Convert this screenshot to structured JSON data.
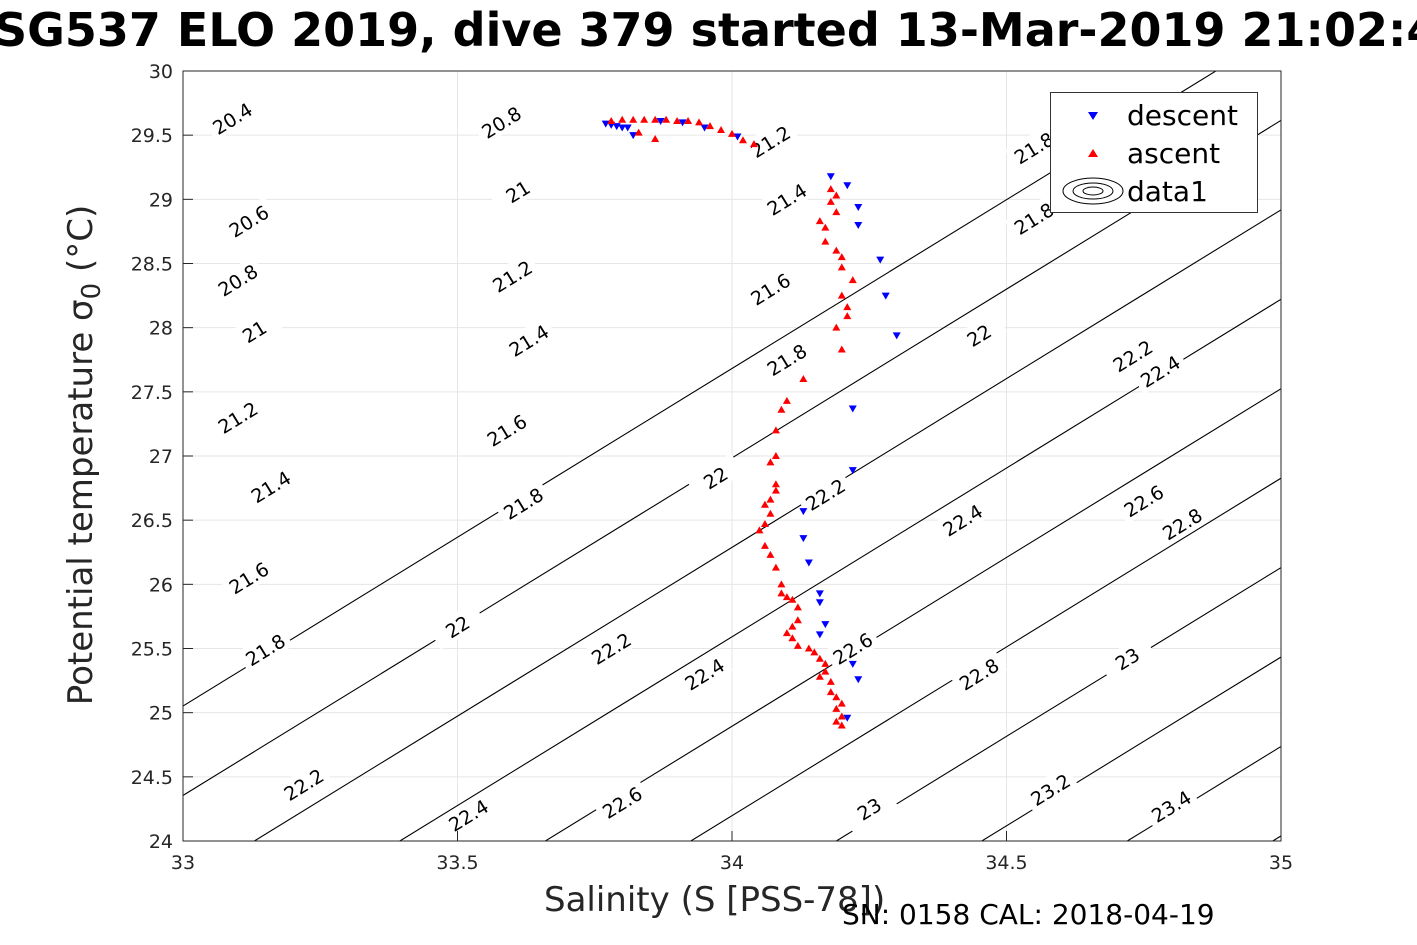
{
  "title": "SG537 ELO 2019, dive 379 started 13-Mar-2019 21:02:4",
  "footer": "SN: 0158  CAL: 2018-04-19",
  "chart_data": {
    "type": "scatter",
    "xlabel": "Salinity (S [PSS-78])",
    "ylabel_text": "Potential temperature σ",
    "ylabel_sub": "0",
    "ylabel_unit": " (°C)",
    "xlim": [
      33,
      35
    ],
    "ylim": [
      24,
      30
    ],
    "x_ticks": [
      "33",
      "33.5",
      "34",
      "34.5",
      "35"
    ],
    "y_ticks": [
      "24",
      "24.5",
      "25",
      "25.5",
      "26",
      "26.5",
      "27",
      "27.5",
      "28",
      "28.5",
      "29",
      "29.5",
      "30"
    ],
    "grid": true,
    "legend_placement": "top-right",
    "legend": [
      "descent",
      "ascent",
      "data1"
    ],
    "colors": {
      "descent": "#0000ff",
      "ascent": "#ff0000",
      "contour": "#000000",
      "grid": "#e6e6e6"
    },
    "contour_labels": [
      {
        "text": "20.4",
        "x": 33.09,
        "y": 29.63
      },
      {
        "text": "20.6",
        "x": 33.12,
        "y": 28.83
      },
      {
        "text": "20.8",
        "x": 33.1,
        "y": 28.37
      },
      {
        "text": "21",
        "x": 33.13,
        "y": 27.97
      },
      {
        "text": "21.2",
        "x": 33.1,
        "y": 27.3
      },
      {
        "text": "21.4",
        "x": 33.16,
        "y": 26.76
      },
      {
        "text": "21.6",
        "x": 33.12,
        "y": 26.05
      },
      {
        "text": "21.8",
        "x": 33.15,
        "y": 25.49
      },
      {
        "text": "22.2",
        "x": 33.22,
        "y": 24.44
      },
      {
        "text": "20.8",
        "x": 33.58,
        "y": 29.6
      },
      {
        "text": "21",
        "x": 33.61,
        "y": 29.06
      },
      {
        "text": "21.2",
        "x": 33.6,
        "y": 28.4
      },
      {
        "text": "21.4",
        "x": 33.63,
        "y": 27.9
      },
      {
        "text": "21.6",
        "x": 33.59,
        "y": 27.2
      },
      {
        "text": "21.8",
        "x": 33.62,
        "y": 26.63
      },
      {
        "text": "22",
        "x": 33.5,
        "y": 25.67
      },
      {
        "text": "22.2",
        "x": 33.78,
        "y": 25.5
      },
      {
        "text": "22.4",
        "x": 33.52,
        "y": 24.2
      },
      {
        "text": "21.2",
        "x": 34.07,
        "y": 29.45
      },
      {
        "text": "21.4",
        "x": 34.1,
        "y": 29.0
      },
      {
        "text": "21.6",
        "x": 34.07,
        "y": 28.3
      },
      {
        "text": "21.8",
        "x": 34.1,
        "y": 27.75
      },
      {
        "text": "22",
        "x": 33.97,
        "y": 26.83
      },
      {
        "text": "22.2",
        "x": 34.17,
        "y": 26.7
      },
      {
        "text": "22.4",
        "x": 33.95,
        "y": 25.3
      },
      {
        "text": "22.6",
        "x": 34.22,
        "y": 25.5
      },
      {
        "text": "22.6",
        "x": 33.8,
        "y": 24.3
      },
      {
        "text": "23",
        "x": 34.25,
        "y": 24.25
      },
      {
        "text": "21.8",
        "x": 34.55,
        "y": 29.4
      },
      {
        "text": "21.8",
        "x": 34.55,
        "y": 28.85
      },
      {
        "text": "22",
        "x": 34.45,
        "y": 27.94
      },
      {
        "text": "22.2",
        "x": 34.73,
        "y": 27.78
      },
      {
        "text": "22.4",
        "x": 34.78,
        "y": 27.66
      },
      {
        "text": "22.4",
        "x": 34.42,
        "y": 26.5
      },
      {
        "text": "22.6",
        "x": 34.75,
        "y": 26.65
      },
      {
        "text": "22.8",
        "x": 34.82,
        "y": 26.47
      },
      {
        "text": "22.8",
        "x": 34.45,
        "y": 25.3
      },
      {
        "text": "23",
        "x": 34.72,
        "y": 25.42
      },
      {
        "text": "23.2",
        "x": 34.58,
        "y": 24.4
      },
      {
        "text": "23.4",
        "x": 34.8,
        "y": 24.27
      }
    ],
    "contour_levels": [
      "20.4",
      "20.6",
      "20.8",
      "21",
      "21.2",
      "21.4",
      "21.6",
      "21.8",
      "22",
      "22.2",
      "22.4",
      "22.6",
      "22.8",
      "23",
      "23.2",
      "23.4"
    ],
    "series": [
      {
        "name": "descent",
        "marker": "triangle-down",
        "points": [
          [
            33.77,
            29.59
          ],
          [
            33.78,
            29.58
          ],
          [
            33.79,
            29.57
          ],
          [
            33.8,
            29.56
          ],
          [
            33.81,
            29.56
          ],
          [
            33.82,
            29.5
          ],
          [
            33.87,
            29.61
          ],
          [
            33.91,
            29.6
          ],
          [
            33.95,
            29.56
          ],
          [
            34.01,
            29.49
          ],
          [
            34.18,
            29.18
          ],
          [
            34.21,
            29.11
          ],
          [
            34.23,
            28.94
          ],
          [
            34.23,
            28.8
          ],
          [
            34.27,
            28.53
          ],
          [
            34.28,
            28.25
          ],
          [
            34.3,
            27.94
          ],
          [
            34.22,
            27.37
          ],
          [
            34.22,
            26.89
          ],
          [
            34.13,
            26.57
          ],
          [
            34.13,
            26.36
          ],
          [
            34.14,
            26.17
          ],
          [
            34.16,
            25.93
          ],
          [
            34.16,
            25.86
          ],
          [
            34.17,
            25.69
          ],
          [
            34.16,
            25.61
          ],
          [
            34.22,
            25.38
          ],
          [
            34.23,
            25.26
          ],
          [
            34.21,
            24.96
          ]
        ]
      },
      {
        "name": "ascent",
        "marker": "triangle-up",
        "points": [
          [
            33.78,
            29.61
          ],
          [
            33.8,
            29.62
          ],
          [
            33.82,
            29.62
          ],
          [
            33.84,
            29.62
          ],
          [
            33.86,
            29.62
          ],
          [
            33.88,
            29.62
          ],
          [
            33.9,
            29.61
          ],
          [
            33.92,
            29.61
          ],
          [
            33.94,
            29.6
          ],
          [
            33.96,
            29.57
          ],
          [
            33.98,
            29.54
          ],
          [
            34.0,
            29.51
          ],
          [
            34.02,
            29.46
          ],
          [
            34.04,
            29.43
          ],
          [
            33.83,
            29.52
          ],
          [
            33.86,
            29.47
          ],
          [
            34.18,
            29.08
          ],
          [
            34.19,
            29.03
          ],
          [
            34.18,
            28.98
          ],
          [
            34.19,
            28.9
          ],
          [
            34.16,
            28.83
          ],
          [
            34.17,
            28.78
          ],
          [
            34.17,
            28.67
          ],
          [
            34.19,
            28.6
          ],
          [
            34.2,
            28.55
          ],
          [
            34.2,
            28.47
          ],
          [
            34.22,
            28.37
          ],
          [
            34.2,
            28.25
          ],
          [
            34.21,
            28.16
          ],
          [
            34.21,
            28.09
          ],
          [
            34.19,
            28.0
          ],
          [
            34.2,
            27.83
          ],
          [
            34.13,
            27.6
          ],
          [
            34.1,
            27.43
          ],
          [
            34.09,
            27.36
          ],
          [
            34.08,
            27.2
          ],
          [
            34.08,
            27.0
          ],
          [
            34.07,
            26.95
          ],
          [
            34.08,
            26.78
          ],
          [
            34.08,
            26.73
          ],
          [
            34.07,
            26.66
          ],
          [
            34.06,
            26.62
          ],
          [
            34.07,
            26.55
          ],
          [
            34.06,
            26.47
          ],
          [
            34.05,
            26.42
          ],
          [
            34.06,
            26.3
          ],
          [
            34.07,
            26.23
          ],
          [
            34.08,
            26.13
          ],
          [
            34.09,
            26.0
          ],
          [
            34.09,
            25.93
          ],
          [
            34.1,
            25.9
          ],
          [
            34.11,
            25.88
          ],
          [
            34.12,
            25.82
          ],
          [
            34.12,
            25.72
          ],
          [
            34.11,
            25.67
          ],
          [
            34.1,
            25.62
          ],
          [
            34.11,
            25.58
          ],
          [
            34.12,
            25.52
          ],
          [
            34.14,
            25.5
          ],
          [
            34.15,
            25.47
          ],
          [
            34.16,
            25.42
          ],
          [
            34.17,
            25.38
          ],
          [
            34.17,
            25.32
          ],
          [
            34.16,
            25.28
          ],
          [
            34.18,
            25.24
          ],
          [
            34.18,
            25.16
          ],
          [
            34.19,
            25.12
          ],
          [
            34.2,
            25.07
          ],
          [
            34.19,
            25.03
          ],
          [
            34.2,
            24.97
          ],
          [
            34.19,
            24.93
          ],
          [
            34.2,
            24.9
          ]
        ]
      }
    ]
  }
}
